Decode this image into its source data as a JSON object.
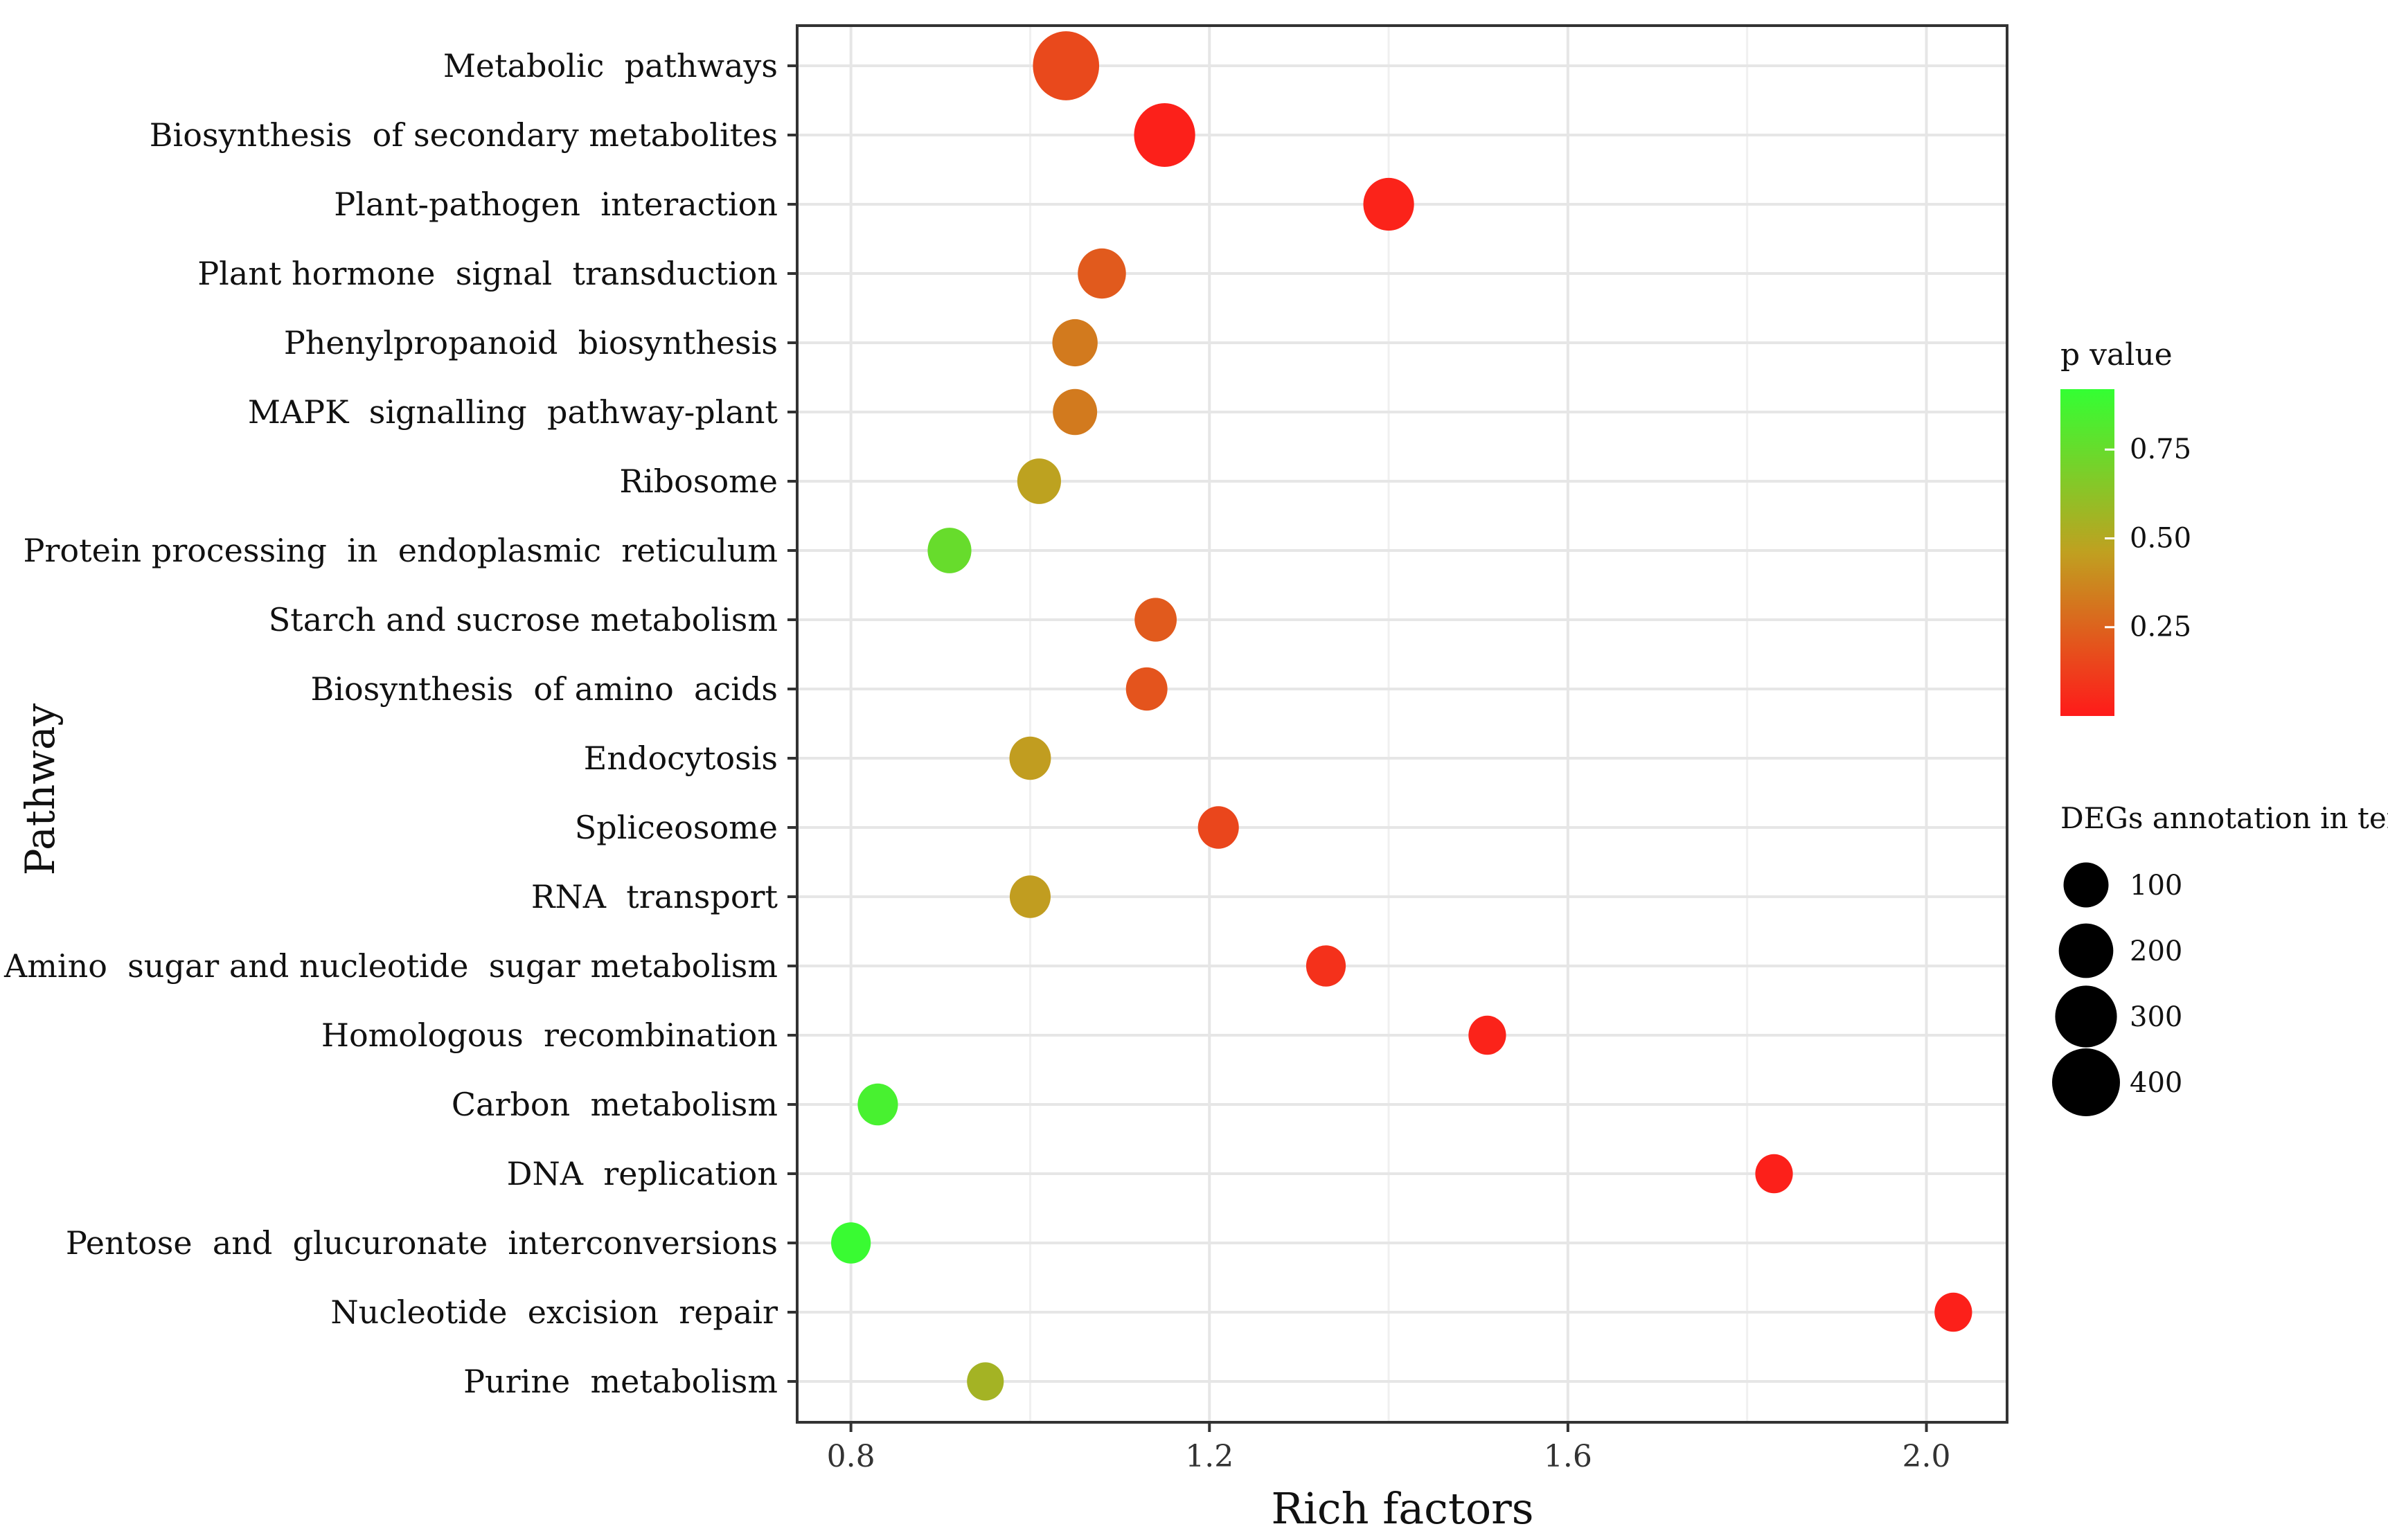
{
  "chart_data": {
    "type": "scatter",
    "title": "",
    "xlabel": "Rich factors",
    "ylabel": "Pathway",
    "xlim": [
      0.74,
      2.09
    ],
    "xticks": [
      "0.8",
      "1.2",
      "1.6",
      "2.0"
    ],
    "x_tick_values": [
      0.8,
      1.2,
      1.6,
      2.0
    ],
    "grid": true,
    "points": [
      {
        "pathway": "Metabolic  pathways",
        "x": 1.04,
        "p": 0.16,
        "count": 420
      },
      {
        "pathway": "Biosynthesis  of secondary metabolites",
        "x": 1.15,
        "p": 0.02,
        "count": 330
      },
      {
        "pathway": "Plant-pathogen  interaction",
        "x": 1.4,
        "p": 0.03,
        "count": 180
      },
      {
        "pathway": "Plant hormone  signal  transduction",
        "x": 1.08,
        "p": 0.22,
        "count": 150
      },
      {
        "pathway": "Phenylpropanoid  biosynthesis",
        "x": 1.05,
        "p": 0.33,
        "count": 120
      },
      {
        "pathway": "MAPK  signalling  pathway-plant",
        "x": 1.05,
        "p": 0.33,
        "count": 110
      },
      {
        "pathway": "Ribosome",
        "x": 1.01,
        "p": 0.47,
        "count": 105
      },
      {
        "pathway": "Protein processing  in  endoplasmic  reticulum",
        "x": 0.91,
        "p": 0.75,
        "count": 105
      },
      {
        "pathway": "Starch and sucrose metabolism",
        "x": 1.14,
        "p": 0.22,
        "count": 90
      },
      {
        "pathway": "Biosynthesis  of amino  acids",
        "x": 1.13,
        "p": 0.2,
        "count": 85
      },
      {
        "pathway": "Endocytosis",
        "x": 1.0,
        "p": 0.45,
        "count": 85
      },
      {
        "pathway": "Spliceosome",
        "x": 1.21,
        "p": 0.15,
        "count": 80
      },
      {
        "pathway": "RNA  transport",
        "x": 1.0,
        "p": 0.45,
        "count": 80
      },
      {
        "pathway": "Amino  sugar and nucleotide  sugar metabolism",
        "x": 1.33,
        "p": 0.08,
        "count": 70
      },
      {
        "pathway": "Homologous  recombination",
        "x": 1.51,
        "p": 0.03,
        "count": 55
      },
      {
        "pathway": "Carbon  metabolism",
        "x": 0.83,
        "p": 0.85,
        "count": 75
      },
      {
        "pathway": "DNA  replication",
        "x": 1.83,
        "p": 0.02,
        "count": 55
      },
      {
        "pathway": "Pentose  and  glucuronate  interconversions",
        "x": 0.8,
        "p": 0.9,
        "count": 70
      },
      {
        "pathway": "Nucleotide  excision  repair",
        "x": 2.03,
        "p": 0.02,
        "count": 55
      },
      {
        "pathway": "Purine  metabolism",
        "x": 0.95,
        "p": 0.55,
        "count": 50
      }
    ],
    "color_legend": {
      "title": "p value",
      "ticks": [
        "0.75",
        "0.50",
        "0.25"
      ],
      "tick_values": [
        0.75,
        0.5,
        0.25
      ],
      "range": [
        0.0,
        0.92
      ],
      "low_color": "#ff1a1a",
      "mid_color": "#c0a020",
      "high_color": "#33ff33"
    },
    "size_legend": {
      "title": "DEGs annotation in term",
      "labels": [
        "100",
        "200",
        "300",
        "400"
      ],
      "values": [
        100,
        200,
        300,
        400
      ]
    }
  }
}
